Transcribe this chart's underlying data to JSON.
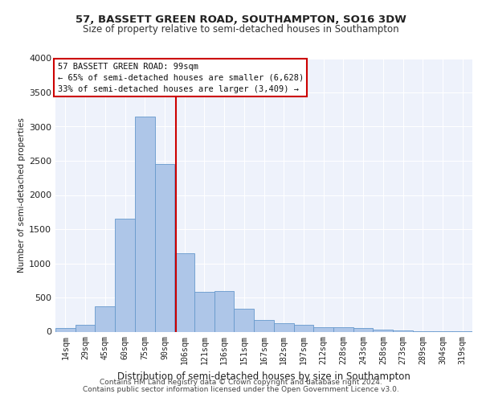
{
  "title1": "57, BASSETT GREEN ROAD, SOUTHAMPTON, SO16 3DW",
  "title2": "Size of property relative to semi-detached houses in Southampton",
  "xlabel": "Distribution of semi-detached houses by size in Southampton",
  "ylabel": "Number of semi-detached properties",
  "footer1": "Contains HM Land Registry data © Crown copyright and database right 2024.",
  "footer2": "Contains public sector information licensed under the Open Government Licence v3.0.",
  "annotation_title": "57 BASSETT GREEN ROAD: 99sqm",
  "annotation_line2": "← 65% of semi-detached houses are smaller (6,628)",
  "annotation_line3": "33% of semi-detached houses are larger (3,409) →",
  "bar_color": "#aec6e8",
  "bar_edge_color": "#6699cc",
  "vline_color": "#cc0000",
  "annotation_box_color": "#ffffff",
  "annotation_box_edge": "#cc0000",
  "background_color": "#eef2fb",
  "grid_color": "#ffffff",
  "categories": [
    "14sqm",
    "29sqm",
    "45sqm",
    "60sqm",
    "75sqm",
    "90sqm",
    "106sqm",
    "121sqm",
    "136sqm",
    "151sqm",
    "167sqm",
    "182sqm",
    "197sqm",
    "212sqm",
    "228sqm",
    "243sqm",
    "258sqm",
    "273sqm",
    "289sqm",
    "304sqm",
    "319sqm"
  ],
  "values": [
    50,
    100,
    370,
    1650,
    3150,
    2450,
    1150,
    580,
    600,
    330,
    175,
    120,
    100,
    70,
    60,
    50,
    30,
    15,
    10,
    5,
    5
  ],
  "vline_x": 5.5625,
  "ylim": [
    0,
    4000
  ],
  "yticks": [
    0,
    500,
    1000,
    1500,
    2000,
    2500,
    3000,
    3500,
    4000
  ]
}
